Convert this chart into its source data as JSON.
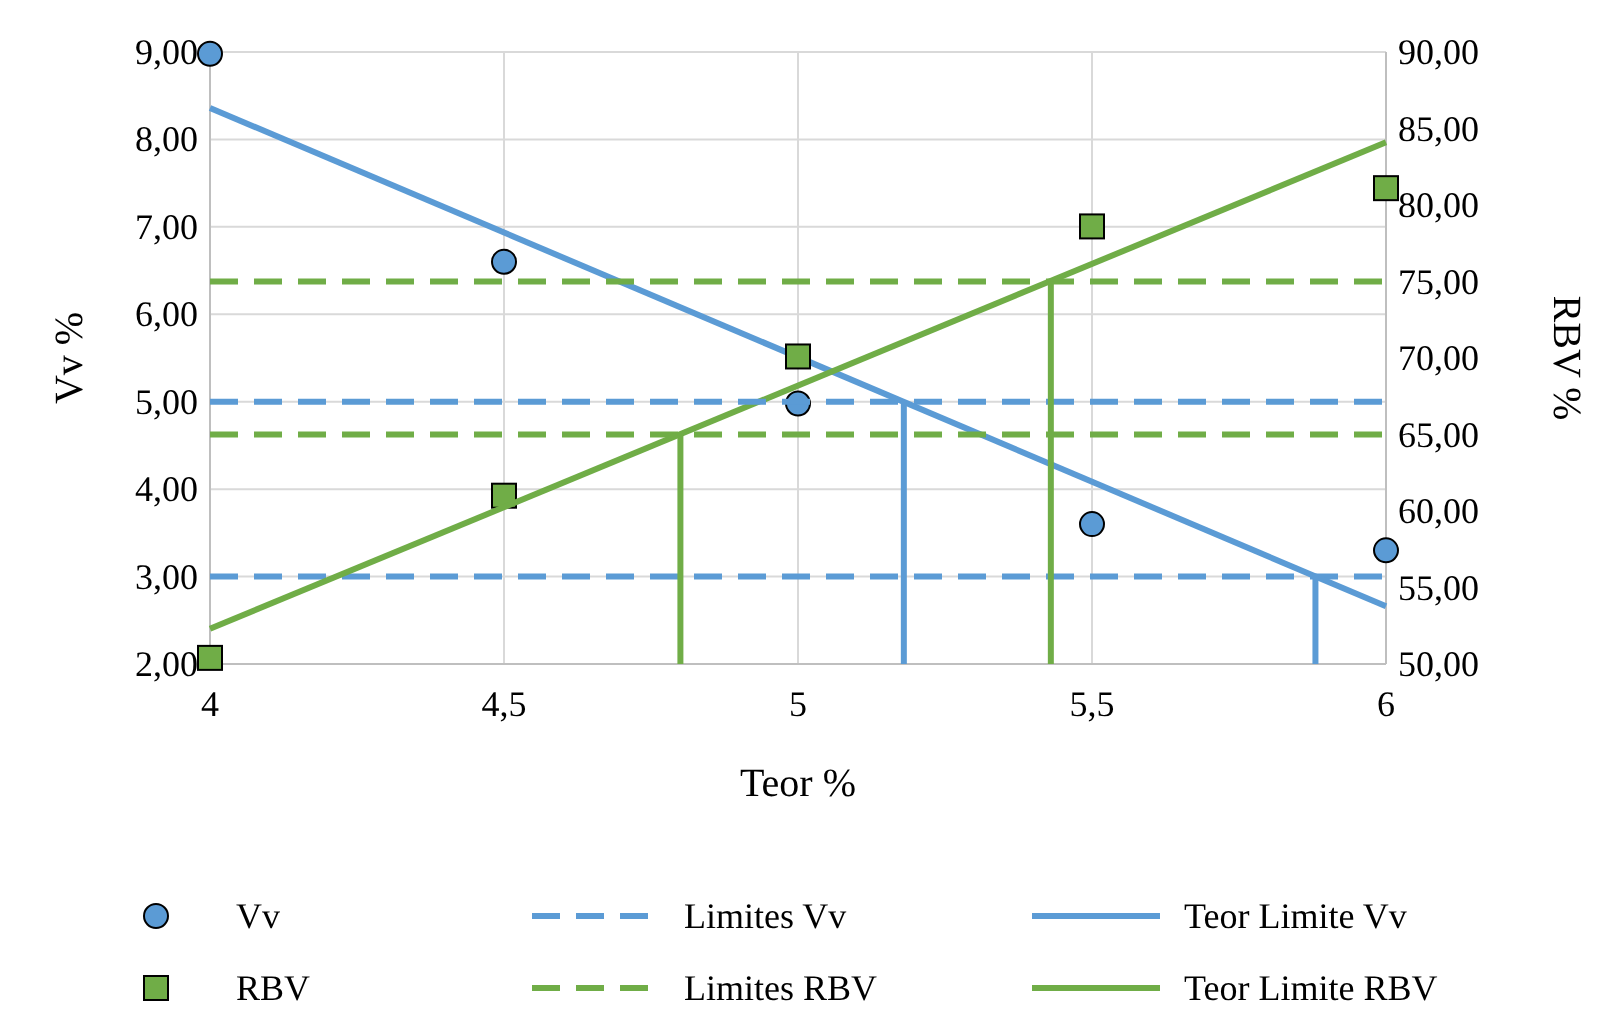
{
  "chart_data": {
    "type": "scatter",
    "xlabel": "Teor %",
    "ylabel": "Vv %",
    "y2label": "RBV %",
    "xlim": [
      4,
      6
    ],
    "xticks": [
      4,
      {
        "value": 4.5,
        "label": "4,5"
      },
      5,
      {
        "value": 5.5,
        "label": "5,5"
      },
      6
    ],
    "ylim": [
      2,
      9
    ],
    "yticks": [
      {
        "value": 2,
        "label": "2,00"
      },
      {
        "value": 3,
        "label": "3,00"
      },
      {
        "value": 4,
        "label": "4,00"
      },
      {
        "value": 5,
        "label": "5,00"
      },
      {
        "value": 6,
        "label": "6,00"
      },
      {
        "value": 7,
        "label": "7,00"
      },
      {
        "value": 8,
        "label": "8,00"
      },
      {
        "value": 9,
        "label": "9,00"
      }
    ],
    "y2lim": [
      50,
      90
    ],
    "y2ticks": [
      {
        "value": 50,
        "label": "50,00"
      },
      {
        "value": 55,
        "label": "55,00"
      },
      {
        "value": 60,
        "label": "60,00"
      },
      {
        "value": 65,
        "label": "65,00"
      },
      {
        "value": 70,
        "label": "70,00"
      },
      {
        "value": 75,
        "label": "75,00"
      },
      {
        "value": 80,
        "label": "80,00"
      },
      {
        "value": 85,
        "label": "85,00"
      },
      {
        "value": 90,
        "label": "90,00"
      }
    ],
    "grid": true,
    "legend": "bottom",
    "series": [
      {
        "name": "Vv",
        "marker": "circle",
        "color": "#5b9bd5",
        "x": [
          4,
          4.5,
          5,
          5.5,
          6
        ],
        "values": [
          8.98,
          6.6,
          4.98,
          3.6,
          3.3
        ]
      },
      {
        "name": "Limites Vv",
        "type": "line",
        "marker": "none",
        "line_style": "dashed",
        "color": "#5b9bd5",
        "x": [
          4,
          6
        ],
        "values": [
          3,
          3
        ]
      },
      {
        "name": "Teor Limite Vv",
        "type": "line",
        "marker": "none",
        "line_style": "solid",
        "color": "#5b9bd5",
        "x": [
          4,
          6
        ],
        "values": [
          8.36,
          2.66
        ]
      },
      {
        "name": "RBV",
        "marker": "square",
        "axis": "y2",
        "color": "#70ad47",
        "x": [
          4,
          4.5,
          5,
          5.5,
          6
        ],
        "values": [
          50.4,
          61,
          70.1,
          78.6,
          81.1
        ]
      },
      {
        "name": "Limites RBV",
        "type": "line",
        "marker": "none",
        "line_style": "dashed",
        "axis": "y2",
        "color": "#70ad47",
        "x": [
          4,
          6
        ],
        "values": [
          65,
          65
        ]
      },
      {
        "name": "Teor Limite RBV",
        "type": "line",
        "marker": "none",
        "line_style": "solid",
        "axis": "y2",
        "color": "#70ad47",
        "x": [
          4,
          6
        ],
        "values": [
          52.3,
          84.1
        ]
      },
      {
        "type": "line",
        "marker": "none",
        "line_style": "dashed",
        "color": "#5b9bd5",
        "x": [
          4,
          6
        ],
        "values": [
          5,
          5
        ]
      },
      {
        "type": "line",
        "marker": "none",
        "line_style": "dashed",
        "axis": "y2",
        "color": "#70ad47",
        "x": [
          4,
          6
        ],
        "values": [
          75,
          75
        ]
      },
      {
        "type": "line",
        "marker": "none",
        "line_style": "solid",
        "color": "#5b9bd5",
        "x": [
          5.18,
          5.18
        ],
        "values": [
          5,
          2
        ]
      },
      {
        "type": "line",
        "marker": "none",
        "line_style": "solid",
        "color": "#5b9bd5",
        "x": [
          5.88,
          5.88
        ],
        "values": [
          3,
          2
        ]
      },
      {
        "type": "line",
        "marker": "none",
        "line_style": "solid",
        "axis": "y2",
        "color": "#70ad47",
        "x": [
          4.8,
          4.8
        ],
        "values": [
          65,
          50
        ]
      },
      {
        "type": "line",
        "marker": "none",
        "line_style": "solid",
        "axis": "y2",
        "color": "#70ad47",
        "x": [
          5.43,
          5.43
        ],
        "values": [
          75,
          50
        ]
      }
    ]
  }
}
